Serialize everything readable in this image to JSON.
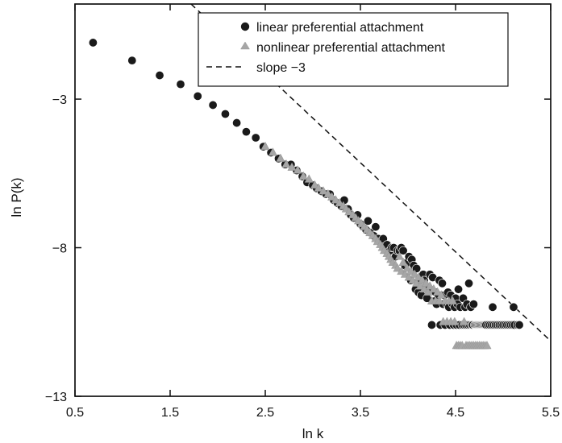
{
  "chart_data": {
    "type": "scatter",
    "title": "",
    "xlabel": "ln k",
    "ylabel": "ln P(k)",
    "xlim": [
      0.5,
      5.5
    ],
    "ylim": [
      -13,
      0.2
    ],
    "xticks": [
      0.5,
      1.5,
      2.5,
      3.5,
      4.5,
      5.5
    ],
    "yticks": [
      -3,
      -8,
      -13
    ],
    "xtick_labels": [
      "0.5",
      "1.5",
      "2.5",
      "3.5",
      "4.5",
      "5.5"
    ],
    "ytick_labels": [
      "−3",
      "−8",
      "−13"
    ],
    "legend_position": "top-right",
    "legend_items": [
      {
        "key": "linear",
        "label": "linear preferential attachment"
      },
      {
        "key": "nonlinear",
        "label": "nonlinear preferential attachment"
      },
      {
        "key": "slope",
        "label": "slope −3"
      }
    ],
    "series": [
      {
        "key": "linear",
        "name": "linear preferential attachment",
        "marker": "circle",
        "color": "#1a1a1a",
        "points": [
          [
            0.69,
            -1.1
          ],
          [
            1.1,
            -1.7
          ],
          [
            1.39,
            -2.2
          ],
          [
            1.61,
            -2.5
          ],
          [
            1.79,
            -2.9
          ],
          [
            1.95,
            -3.2
          ],
          [
            2.08,
            -3.5
          ],
          [
            2.2,
            -3.8
          ],
          [
            2.3,
            -4.1
          ],
          [
            2.4,
            -4.3
          ],
          [
            2.48,
            -4.6
          ],
          [
            2.56,
            -4.8
          ],
          [
            2.64,
            -5.0
          ],
          [
            2.71,
            -5.2
          ],
          [
            2.77,
            -5.2
          ],
          [
            2.83,
            -5.4
          ],
          [
            2.89,
            -5.6
          ],
          [
            2.94,
            -5.8
          ],
          [
            3.0,
            -5.9
          ],
          [
            3.04,
            -6.0
          ],
          [
            3.09,
            -6.1
          ],
          [
            3.14,
            -6.2
          ],
          [
            3.18,
            -6.2
          ],
          [
            3.22,
            -6.4
          ],
          [
            3.26,
            -6.5
          ],
          [
            3.3,
            -6.6
          ],
          [
            3.33,
            -6.4
          ],
          [
            3.37,
            -6.7
          ],
          [
            3.4,
            -6.9
          ],
          [
            3.43,
            -7.0
          ],
          [
            3.47,
            -6.9
          ],
          [
            3.5,
            -7.2
          ],
          [
            3.53,
            -7.3
          ],
          [
            3.56,
            -7.4
          ],
          [
            3.58,
            -7.1
          ],
          [
            3.61,
            -7.5
          ],
          [
            3.64,
            -7.6
          ],
          [
            3.66,
            -7.3
          ],
          [
            3.69,
            -7.7
          ],
          [
            3.71,
            -7.8
          ],
          [
            3.74,
            -7.7
          ],
          [
            3.76,
            -8.0
          ],
          [
            3.78,
            -7.9
          ],
          [
            3.81,
            -8.1
          ],
          [
            3.83,
            -8.0
          ],
          [
            3.85,
            -8.0
          ],
          [
            3.87,
            -8.3
          ],
          [
            3.89,
            -8.1
          ],
          [
            3.91,
            -8.1
          ],
          [
            3.93,
            -8.0
          ],
          [
            3.95,
            -8.1
          ],
          [
            3.97,
            -8.6
          ],
          [
            3.99,
            -8.5
          ],
          [
            4.01,
            -8.3
          ],
          [
            4.03,
            -9.1
          ],
          [
            4.04,
            -8.4
          ],
          [
            4.06,
            -8.6
          ],
          [
            4.08,
            -9.4
          ],
          [
            4.09,
            -8.7
          ],
          [
            4.11,
            -9.5
          ],
          [
            4.13,
            -9.2
          ],
          [
            4.14,
            -9.6
          ],
          [
            4.16,
            -8.9
          ],
          [
            4.17,
            -9.1
          ],
          [
            4.19,
            -9.3
          ],
          [
            4.2,
            -9.7
          ],
          [
            4.22,
            -9.4
          ],
          [
            4.23,
            -8.9
          ],
          [
            4.25,
            -10.6
          ],
          [
            4.26,
            -9.0
          ],
          [
            4.28,
            -9.8
          ],
          [
            4.29,
            -9.5
          ],
          [
            4.3,
            -9.9
          ],
          [
            4.32,
            -9.6
          ],
          [
            4.33,
            -9.1
          ],
          [
            4.34,
            -10.6
          ],
          [
            4.36,
            -9.2
          ],
          [
            4.37,
            -9.9
          ],
          [
            4.38,
            -9.6
          ],
          [
            4.39,
            -10.6
          ],
          [
            4.41,
            -9.9
          ],
          [
            4.42,
            -9.5
          ],
          [
            4.43,
            -10.0
          ],
          [
            4.44,
            -10.6
          ],
          [
            4.45,
            -9.6
          ],
          [
            4.47,
            -9.9
          ],
          [
            4.48,
            -10.6
          ],
          [
            4.49,
            -10.0
          ],
          [
            4.5,
            -9.7
          ],
          [
            4.51,
            -10.6
          ],
          [
            4.52,
            -9.9
          ],
          [
            4.53,
            -9.4
          ],
          [
            4.54,
            -10.6
          ],
          [
            4.55,
            -10.0
          ],
          [
            4.57,
            -10.6
          ],
          [
            4.58,
            -9.7
          ],
          [
            4.59,
            -10.6
          ],
          [
            4.6,
            -10.0
          ],
          [
            4.61,
            -10.6
          ],
          [
            4.62,
            -9.9
          ],
          [
            4.63,
            -10.6
          ],
          [
            4.64,
            -9.2
          ],
          [
            4.65,
            -10.6
          ],
          [
            4.66,
            -10.0
          ],
          [
            4.67,
            -10.6
          ],
          [
            4.68,
            -10.6
          ],
          [
            4.69,
            -9.9
          ],
          [
            4.7,
            -10.6
          ],
          [
            4.71,
            -10.6
          ],
          [
            4.72,
            -10.6
          ],
          [
            4.73,
            -10.6
          ],
          [
            4.74,
            -10.6
          ],
          [
            4.75,
            -10.6
          ],
          [
            4.76,
            -10.6
          ],
          [
            4.77,
            -10.6
          ],
          [
            4.78,
            -10.6
          ],
          [
            4.79,
            -10.6
          ],
          [
            4.8,
            -10.6
          ],
          [
            4.81,
            -10.6
          ],
          [
            4.82,
            -10.6
          ],
          [
            4.84,
            -10.6
          ],
          [
            4.86,
            -10.6
          ],
          [
            4.88,
            -10.6
          ],
          [
            4.9,
            -10.6
          ],
          [
            4.92,
            -10.6
          ],
          [
            4.94,
            -10.6
          ],
          [
            4.96,
            -10.6
          ],
          [
            4.98,
            -10.6
          ],
          [
            5.0,
            -10.6
          ],
          [
            5.02,
            -10.6
          ],
          [
            5.04,
            -10.6
          ],
          [
            5.06,
            -10.6
          ],
          [
            5.08,
            -10.6
          ],
          [
            5.1,
            -10.6
          ],
          [
            5.12,
            -10.6
          ],
          [
            5.15,
            -10.6
          ],
          [
            5.17,
            -10.6
          ],
          [
            4.89,
            -10.0
          ],
          [
            5.11,
            -10.0
          ]
        ]
      },
      {
        "key": "nonlinear",
        "name": "nonlinear preferential attachment",
        "marker": "triangle",
        "color": "#a6a6a6",
        "points": [
          [
            2.5,
            -4.6
          ],
          [
            2.58,
            -4.8
          ],
          [
            2.66,
            -5.0
          ],
          [
            2.72,
            -5.2
          ],
          [
            2.78,
            -5.3
          ],
          [
            2.84,
            -5.4
          ],
          [
            2.9,
            -5.6
          ],
          [
            2.96,
            -5.7
          ],
          [
            3.02,
            -5.9
          ],
          [
            3.06,
            -6.0
          ],
          [
            3.11,
            -6.1
          ],
          [
            3.16,
            -6.2
          ],
          [
            3.2,
            -6.3
          ],
          [
            3.24,
            -6.4
          ],
          [
            3.28,
            -6.5
          ],
          [
            3.32,
            -6.6
          ],
          [
            3.35,
            -6.7
          ],
          [
            3.38,
            -6.8
          ],
          [
            3.42,
            -6.9
          ],
          [
            3.45,
            -7.0
          ],
          [
            3.48,
            -7.1
          ],
          [
            3.51,
            -7.2
          ],
          [
            3.54,
            -7.3
          ],
          [
            3.57,
            -7.4
          ],
          [
            3.6,
            -7.5
          ],
          [
            3.63,
            -7.6
          ],
          [
            3.66,
            -7.7
          ],
          [
            3.68,
            -7.8
          ],
          [
            3.71,
            -7.9
          ],
          [
            3.73,
            -8.0
          ],
          [
            3.75,
            -8.1
          ],
          [
            3.78,
            -8.2
          ],
          [
            3.8,
            -8.3
          ],
          [
            3.82,
            -8.4
          ],
          [
            3.84,
            -8.5
          ],
          [
            3.87,
            -8.6
          ],
          [
            3.89,
            -8.7
          ],
          [
            3.91,
            -8.3
          ],
          [
            3.93,
            -8.8
          ],
          [
            3.95,
            -8.5
          ],
          [
            3.97,
            -8.9
          ],
          [
            3.99,
            -8.7
          ],
          [
            4.01,
            -9.0
          ],
          [
            4.03,
            -8.8
          ],
          [
            4.05,
            -9.1
          ],
          [
            4.07,
            -8.9
          ],
          [
            4.09,
            -9.2
          ],
          [
            4.11,
            -9.0
          ],
          [
            4.13,
            -9.3
          ],
          [
            4.15,
            -9.1
          ],
          [
            4.17,
            -9.4
          ],
          [
            4.19,
            -9.2
          ],
          [
            4.21,
            -9.5
          ],
          [
            4.23,
            -9.3
          ],
          [
            4.25,
            -9.8
          ],
          [
            4.27,
            -9.4
          ],
          [
            4.29,
            -9.8
          ],
          [
            4.31,
            -9.5
          ],
          [
            4.33,
            -9.8
          ],
          [
            4.35,
            -9.6
          ],
          [
            4.37,
            -10.5
          ],
          [
            4.39,
            -9.8
          ],
          [
            4.41,
            -10.5
          ],
          [
            4.43,
            -9.8
          ],
          [
            4.45,
            -10.5
          ],
          [
            4.47,
            -9.8
          ],
          [
            4.49,
            -10.5
          ],
          [
            4.51,
            -11.3
          ],
          [
            4.53,
            -11.3
          ],
          [
            4.55,
            -11.3
          ],
          [
            4.57,
            -11.3
          ],
          [
            4.59,
            -10.5
          ],
          [
            4.61,
            -11.3
          ],
          [
            4.63,
            -11.3
          ],
          [
            4.65,
            -11.3
          ],
          [
            4.67,
            -11.3
          ],
          [
            4.69,
            -11.3
          ],
          [
            4.71,
            -11.3
          ],
          [
            4.73,
            -11.3
          ],
          [
            4.75,
            -11.3
          ],
          [
            4.77,
            -11.3
          ],
          [
            4.79,
            -11.3
          ],
          [
            4.81,
            -11.3
          ],
          [
            4.83,
            -11.3
          ]
        ]
      }
    ],
    "reference_lines": [
      {
        "key": "slope",
        "name": "slope −3",
        "style": "dashed",
        "color": "#111111",
        "points": [
          [
            1.72,
            0.2
          ],
          [
            5.5,
            -11.14
          ]
        ]
      }
    ]
  }
}
